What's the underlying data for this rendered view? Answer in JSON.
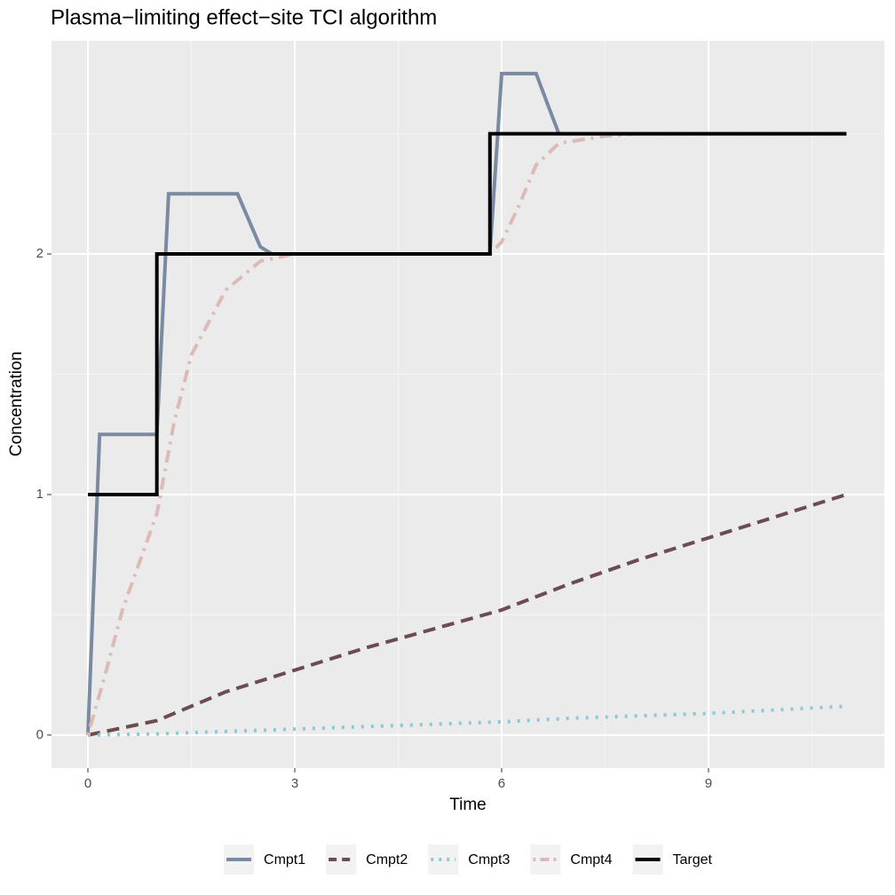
{
  "chart_data": {
    "type": "line",
    "title": "Plasma−limiting effect−site TCI algorithm",
    "x_label": "Time",
    "y_label": "Concentration",
    "xlim": [
      -0.528,
      11.55
    ],
    "ylim": [
      -0.137,
      2.886
    ],
    "xticks": [
      0,
      3,
      6,
      9
    ],
    "yticks": [
      0,
      1,
      2
    ],
    "grid": true,
    "legend": "bottom",
    "series": [
      {
        "name": "Cmpt1",
        "color": "#7a8aa0",
        "dash": "solid",
        "x": [
          0,
          0.17,
          1,
          1.17,
          2.17,
          2.5,
          2.67,
          5.83,
          6,
          6.5,
          6.67,
          6.83,
          11
        ],
        "values": [
          0,
          1.25,
          1.25,
          2.25,
          2.25,
          2.03,
          2,
          2,
          2.75,
          2.75,
          2.62,
          2.5,
          2.5
        ]
      },
      {
        "name": "Cmpt2",
        "color": "#6b4c50",
        "dash": "dashed",
        "x": [
          0,
          1,
          1.5,
          2,
          3,
          4,
          5,
          6,
          7,
          8,
          9,
          10,
          11
        ],
        "values": [
          0,
          0.06,
          0.12,
          0.18,
          0.27,
          0.36,
          0.44,
          0.52,
          0.63,
          0.73,
          0.82,
          0.91,
          1.0
        ]
      },
      {
        "name": "Cmpt3",
        "color": "#8dc8d8",
        "dash": "dotted",
        "x": [
          0,
          1,
          2,
          3,
          4,
          5,
          6,
          7,
          8,
          9,
          10,
          11
        ],
        "values": [
          0,
          0.005,
          0.015,
          0.025,
          0.035,
          0.045,
          0.055,
          0.07,
          0.08,
          0.09,
          0.105,
          0.12
        ]
      },
      {
        "name": "Cmpt4",
        "color": "#dcbab5",
        "dash": "dotdash",
        "x": [
          0,
          0.25,
          0.5,
          0.75,
          1,
          1.25,
          1.5,
          2,
          2.5,
          3,
          5.83,
          6,
          6.25,
          6.5,
          6.83,
          7.5,
          8,
          11
        ],
        "values": [
          0,
          0.25,
          0.52,
          0.72,
          0.92,
          1.3,
          1.58,
          1.85,
          1.97,
          2,
          2,
          2.05,
          2.2,
          2.37,
          2.46,
          2.49,
          2.5,
          2.5
        ]
      },
      {
        "name": "Target",
        "color": "#000000",
        "dash": "solid",
        "x": [
          0,
          1,
          1,
          5.83,
          5.83,
          11
        ],
        "values": [
          1,
          1,
          2,
          2,
          2.5,
          2.5
        ]
      }
    ]
  }
}
